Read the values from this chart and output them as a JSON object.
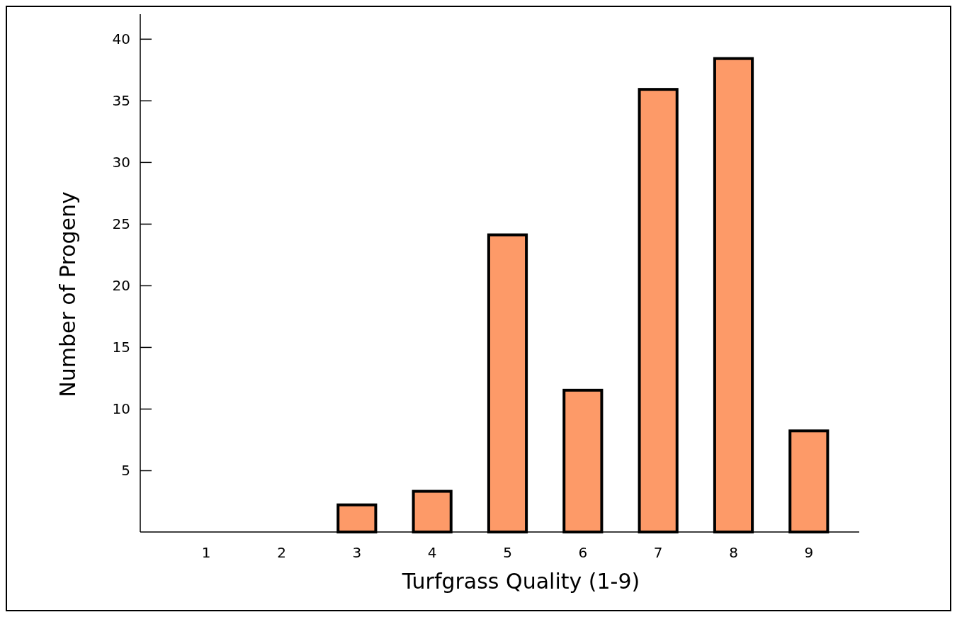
{
  "chart_data": {
    "type": "bar",
    "xlabel": "Turfgrass Quality (1-9)",
    "ylabel": "Number of Progeny",
    "categories": [
      "1",
      "2",
      "3",
      "4",
      "5",
      "6",
      "7",
      "8",
      "9"
    ],
    "values": [
      0,
      0,
      2.2,
      3.3,
      24.1,
      11.5,
      35.9,
      38.4,
      8.2
    ],
    "color": "#fd9a68",
    "ylim": [
      0,
      42
    ],
    "yticks": [
      5,
      10,
      15,
      20,
      25,
      30,
      35,
      40
    ],
    "grid": false
  }
}
